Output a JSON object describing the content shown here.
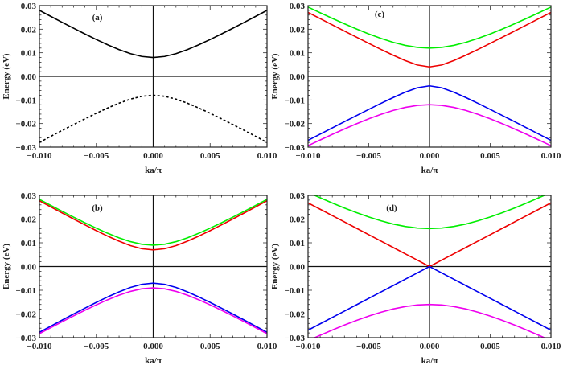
{
  "chart_data": [
    {
      "type": "line",
      "panel_label": "(a)",
      "xlabel": "ka/π",
      "ylabel": "Energy (eV)",
      "xlim": [
        -0.01,
        0.01
      ],
      "ylim": [
        -0.03,
        0.03
      ],
      "x_ticks": [
        "−0.010",
        "−0.005",
        "0.000",
        "0.005",
        "0.010"
      ],
      "y_ticks": [
        "0.03",
        "0.02",
        "0.01",
        "0.00",
        "−0.01",
        "−0.02",
        "−0.03"
      ],
      "x": [
        -0.01,
        -0.009,
        -0.008,
        -0.007,
        -0.006,
        -0.005,
        -0.004,
        -0.003,
        -0.002,
        -0.001,
        0,
        0.001,
        0.002,
        0.003,
        0.004,
        0.005,
        0.006,
        0.007,
        0.008,
        0.009,
        0.01
      ],
      "series": [
        {
          "color": "#000000",
          "style": "solid",
          "values": [
            0.028,
            0.02544,
            0.02291,
            0.02042,
            0.01798,
            0.01562,
            0.01339,
            0.01135,
            0.00963,
            0.00844,
            0.008,
            0.00844,
            0.00963,
            0.01135,
            0.01339,
            0.01562,
            0.01798,
            0.02042,
            0.02291,
            0.02544,
            0.028
          ]
        },
        {
          "color": "#000000",
          "style": "dashed",
          "values": [
            -0.028,
            -0.02544,
            -0.02291,
            -0.02042,
            -0.01798,
            -0.01562,
            -0.01339,
            -0.01135,
            -0.00963,
            -0.00844,
            -0.008,
            -0.00844,
            -0.00963,
            -0.01135,
            -0.01339,
            -0.01562,
            -0.01798,
            -0.02042,
            -0.02291,
            -0.02544,
            -0.028
          ]
        }
      ]
    },
    {
      "type": "line",
      "panel_label": "(c)",
      "xlabel": "ka/π",
      "ylabel": "Energy (eV)",
      "xlim": [
        -0.01,
        0.01
      ],
      "ylim": [
        -0.03,
        0.03
      ],
      "x_ticks": [
        "−0.010",
        "−0.005",
        "0.000",
        "0.005",
        "0.010"
      ],
      "y_ticks": [
        "0.03",
        "0.02",
        "0.01",
        "0.00",
        "−0.01",
        "−0.02",
        "−0.03"
      ],
      "x": [
        -0.01,
        -0.009,
        -0.008,
        -0.007,
        -0.006,
        -0.005,
        -0.004,
        -0.003,
        -0.002,
        -0.001,
        0,
        0.001,
        0.002,
        0.003,
        0.004,
        0.005,
        0.006,
        0.007,
        0.008,
        0.009,
        0.01
      ],
      "series": [
        {
          "color": "#00ee00",
          "style": "solid",
          "values": [
            0.02939,
            0.02697,
            0.02459,
            0.02229,
            0.02008,
            0.018,
            0.0161,
            0.01445,
            0.01315,
            0.0123,
            0.012,
            0.0123,
            0.01315,
            0.01445,
            0.0161,
            0.018,
            0.02008,
            0.02229,
            0.02459,
            0.02697,
            0.02939
          ]
        },
        {
          "color": "#ee0000",
          "style": "solid",
          "values": [
            0.02713,
            0.02448,
            0.02184,
            0.0192,
            0.01659,
            0.014,
            0.01145,
            0.00899,
            0.00669,
            0.00482,
            0.004,
            0.00482,
            0.00669,
            0.00899,
            0.01145,
            0.014,
            0.01659,
            0.0192,
            0.02184,
            0.02448,
            0.02713
          ]
        },
        {
          "color": "#0000ee",
          "style": "solid",
          "values": [
            -0.02713,
            -0.02448,
            -0.02184,
            -0.0192,
            -0.01659,
            -0.014,
            -0.01145,
            -0.00899,
            -0.00669,
            -0.00482,
            -0.004,
            -0.00482,
            -0.00669,
            -0.00899,
            -0.01145,
            -0.014,
            -0.01659,
            -0.0192,
            -0.02184,
            -0.02448,
            -0.02713
          ]
        },
        {
          "color": "#ee00ee",
          "style": "solid",
          "values": [
            -0.02939,
            -0.02697,
            -0.02459,
            -0.02229,
            -0.02008,
            -0.018,
            -0.0161,
            -0.01445,
            -0.01315,
            -0.0123,
            -0.012,
            -0.0123,
            -0.01315,
            -0.01445,
            -0.0161,
            -0.018,
            -0.02008,
            -0.02229,
            -0.02459,
            -0.02697,
            -0.02939
          ]
        }
      ]
    },
    {
      "type": "line",
      "panel_label": "(b)",
      "xlabel": "ka/π",
      "ylabel": "Energy (eV)",
      "xlim": [
        -0.01,
        0.01
      ],
      "ylim": [
        -0.03,
        0.03
      ],
      "x_ticks": [
        "−0.010",
        "−0.005",
        "0.000",
        "0.005",
        "0.010"
      ],
      "y_ticks": [
        "0.03",
        "0.02",
        "0.01",
        "0.00",
        "−0.01",
        "−0.02",
        "−0.03"
      ],
      "x": [
        -0.01,
        -0.009,
        -0.008,
        -0.007,
        -0.006,
        -0.005,
        -0.004,
        -0.003,
        -0.002,
        -0.001,
        0,
        0.001,
        0.002,
        0.003,
        0.004,
        0.005,
        0.006,
        0.007,
        0.008,
        0.009,
        0.01
      ],
      "series": [
        {
          "color": "#00ee00",
          "style": "solid",
          "values": [
            0.0283,
            0.02577,
            0.02328,
            0.02083,
            0.01844,
            0.01616,
            0.01401,
            0.01207,
            0.01048,
            0.00939,
            0.009,
            0.00939,
            0.01048,
            0.01207,
            0.01401,
            0.01616,
            0.01844,
            0.02083,
            0.02328,
            0.02577,
            0.0283
          ]
        },
        {
          "color": "#ee0000",
          "style": "solid",
          "values": [
            0.02773,
            0.02514,
            0.02258,
            0.02004,
            0.01756,
            0.01513,
            0.01281,
            0.01067,
            0.00882,
            0.0075,
            0.007,
            0.0075,
            0.00882,
            0.01067,
            0.01281,
            0.01513,
            0.01756,
            0.02004,
            0.02258,
            0.02514,
            0.02773
          ]
        },
        {
          "color": "#0000ee",
          "style": "solid",
          "values": [
            -0.02773,
            -0.02514,
            -0.02258,
            -0.02004,
            -0.01756,
            -0.01513,
            -0.01281,
            -0.01067,
            -0.00882,
            -0.0075,
            -0.007,
            -0.0075,
            -0.00882,
            -0.01067,
            -0.01281,
            -0.01513,
            -0.01756,
            -0.02004,
            -0.02258,
            -0.02514,
            -0.02773
          ]
        },
        {
          "color": "#ee00ee",
          "style": "solid",
          "values": [
            -0.0283,
            -0.02577,
            -0.02328,
            -0.02083,
            -0.01844,
            -0.01616,
            -0.01401,
            -0.01207,
            -0.01048,
            -0.00939,
            -0.009,
            -0.00939,
            -0.01048,
            -0.01207,
            -0.01401,
            -0.01616,
            -0.01844,
            -0.02083,
            -0.02328,
            -0.02577,
            -0.0283
          ]
        }
      ]
    },
    {
      "type": "line",
      "panel_label": "(d)",
      "xlabel": "ka/π",
      "ylabel": "Energy (eV)",
      "xlim": [
        -0.01,
        0.01
      ],
      "ylim": [
        -0.03,
        0.03
      ],
      "x_ticks": [
        "−0.010",
        "−0.005",
        "0.000",
        "0.005",
        "0.010"
      ],
      "y_ticks": [
        "0.03",
        "0.02",
        "0.01",
        "0.00",
        "−0.01",
        "−0.02",
        "−0.03"
      ],
      "x": [
        -0.01,
        -0.009,
        -0.008,
        -0.007,
        -0.006,
        -0.005,
        -0.004,
        -0.003,
        -0.002,
        -0.001,
        0,
        0.001,
        0.002,
        0.003,
        0.004,
        0.005,
        0.006,
        0.007,
        0.008,
        0.009,
        0.01
      ],
      "series": [
        {
          "color": "#00ee00",
          "style": "solid",
          "values": [
            0.03124,
            0.02897,
            0.02677,
            0.02467,
            0.0227,
            0.02088,
            0.01927,
            0.01791,
            0.01688,
            0.01622,
            0.016,
            0.01622,
            0.01688,
            0.01791,
            0.01927,
            0.02088,
            0.0227,
            0.02467,
            0.02677,
            0.02897,
            0.03124
          ]
        },
        {
          "color": "#ee0000",
          "style": "solid",
          "values": [
            0.02683,
            0.02415,
            0.02147,
            0.01878,
            0.0161,
            0.01342,
            0.01073,
            0.00805,
            0.00537,
            0.00268,
            0,
            0.00268,
            0.00537,
            0.00805,
            0.01073,
            0.01342,
            0.0161,
            0.01878,
            0.02147,
            0.02415,
            0.02683
          ]
        },
        {
          "color": "#0000ee",
          "style": "solid",
          "values": [
            -0.02683,
            -0.02415,
            -0.02147,
            -0.01878,
            -0.0161,
            -0.01342,
            -0.01073,
            -0.00805,
            -0.00537,
            -0.00268,
            0,
            -0.00268,
            -0.00537,
            -0.00805,
            -0.01073,
            -0.01342,
            -0.0161,
            -0.01878,
            -0.02147,
            -0.02415,
            -0.02683
          ]
        },
        {
          "color": "#ee00ee",
          "style": "solid",
          "values": [
            -0.03124,
            -0.02897,
            -0.02677,
            -0.02467,
            -0.0227,
            -0.02088,
            -0.01927,
            -0.01791,
            -0.01688,
            -0.01622,
            -0.016,
            -0.01622,
            -0.01688,
            -0.01791,
            -0.01927,
            -0.02088,
            -0.0227,
            -0.02467,
            -0.02677,
            -0.02897,
            -0.03124
          ]
        }
      ]
    }
  ]
}
